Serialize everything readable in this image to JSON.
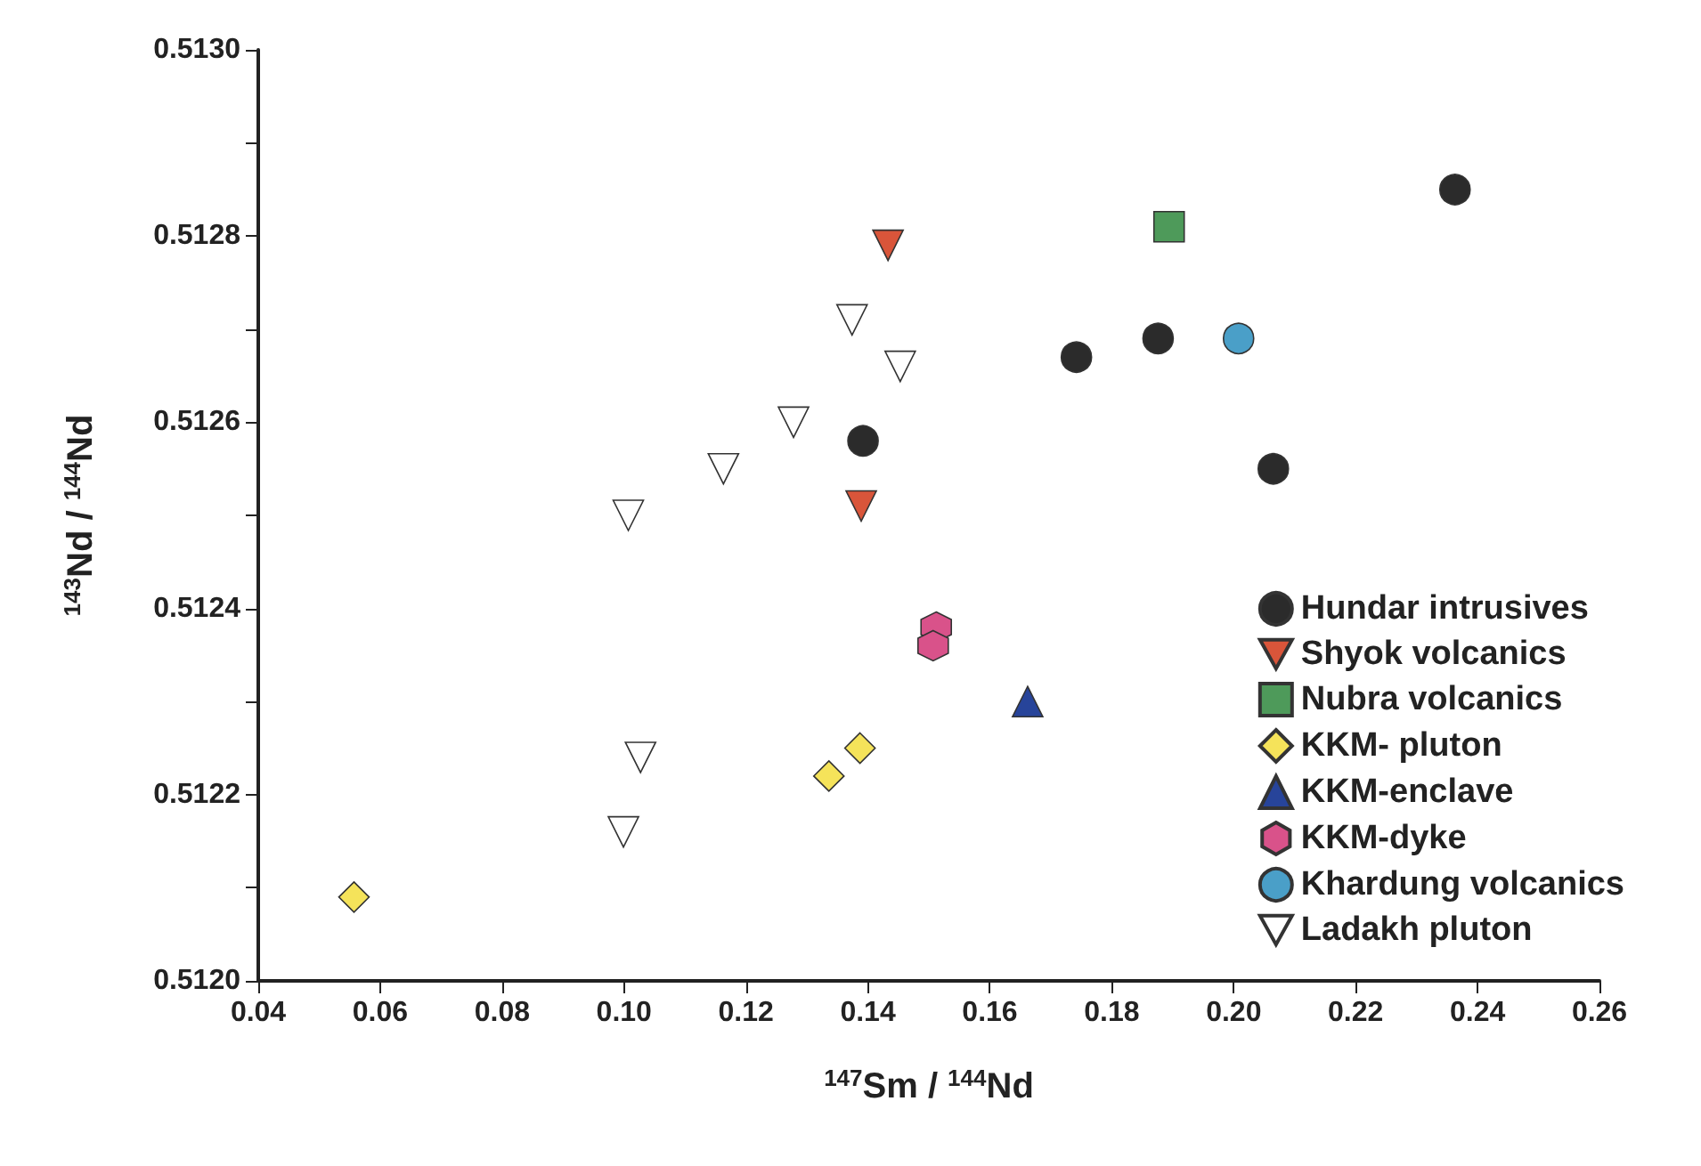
{
  "chart_data": {
    "type": "scatter",
    "xlabel": "$^{147}$Sm / $^{144}$Nd",
    "ylabel": "$^{143}$Nd / $^{144}$Nd",
    "xlim": [
      0.04,
      0.26
    ],
    "xticks": [
      {
        "value": 0.04,
        "label": "0.04"
      },
      {
        "value": 0.06,
        "label": "0.06"
      },
      {
        "value": 0.08,
        "label": "0.08"
      },
      {
        "value": 0.1,
        "label": "0.10"
      },
      {
        "value": 0.12,
        "label": "0.12"
      },
      {
        "value": 0.14,
        "label": "0.14"
      },
      {
        "value": 0.16,
        "label": "0.16"
      },
      {
        "value": 0.18,
        "label": "0.18"
      },
      {
        "value": 0.2,
        "label": "0.20"
      },
      {
        "value": 0.22,
        "label": "0.22"
      },
      {
        "value": 0.24,
        "label": "0.24"
      },
      {
        "value": 0.26,
        "label": "0.26"
      }
    ],
    "ylim": [
      0.512,
      0.513
    ],
    "yticks": [
      {
        "value": 0.512,
        "label": "0.5120"
      },
      {
        "value": 0.5121,
        "label": null
      },
      {
        "value": 0.5122,
        "label": "0.5122"
      },
      {
        "value": 0.5123,
        "label": null
      },
      {
        "value": 0.5124,
        "label": "0.5124"
      },
      {
        "value": 0.5125,
        "label": null
      },
      {
        "value": 0.5126,
        "label": "0.5126"
      },
      {
        "value": 0.5127,
        "label": null
      },
      {
        "value": 0.5128,
        "label": "0.5128"
      },
      {
        "value": 0.5129,
        "label": null
      },
      {
        "value": 0.513,
        "label": "0.5130"
      }
    ],
    "grid": false,
    "legend": "bottom right",
    "series": [
      {
        "name": "Hundar intrusives",
        "color": "#2b2b2b",
        "marker": "circle",
        "x": [
          0.2363,
          0.1742,
          0.1876,
          0.2065,
          0.1392
        ],
        "values": [
          0.51285,
          0.51267,
          0.51269,
          0.51255,
          0.51258
        ]
      },
      {
        "name": "Shyok volcanics",
        "color": "#d9553a",
        "marker": "triangle-down",
        "x": [
          0.1433,
          0.1389
        ],
        "values": [
          0.51279,
          0.51251
        ]
      },
      {
        "name": "Nubra volcanics",
        "color": "#4e9a5a",
        "marker": "square",
        "x": [
          0.1894
        ],
        "values": [
          0.51281
        ]
      },
      {
        "name": "KKM- pluton",
        "color": "#f5e35a",
        "marker": "diamond",
        "x": [
          0.0557,
          0.1336,
          0.1387
        ],
        "values": [
          0.51209,
          0.51222,
          0.51225
        ]
      },
      {
        "name": "KKM-enclave",
        "color": "#27449a",
        "marker": "triangle",
        "x": [
          0.1662
        ],
        "values": [
          0.5123
        ]
      },
      {
        "name": "KKM-dyke",
        "color": "#d9528a",
        "x": [
          0.1512,
          0.1507
        ],
        "values": [
          0.51238,
          0.51236
        ]
      },
      {
        "name": "Khardung volcanics",
        "color": "#4a9fc8",
        "marker": "circle",
        "x": [
          0.2008
        ],
        "values": [
          0.51269
        ]
      },
      {
        "name": "Ladakh pluton",
        "color": "#ffffff",
        "marker": "triangle-down",
        "x": [
          0.1374,
          0.1453,
          0.1278,
          0.1163,
          0.1007,
          0.1027,
          0.0999
        ],
        "values": [
          0.51271,
          0.51266,
          0.5126,
          0.51255,
          0.5125,
          0.51224,
          0.51216
        ]
      }
    ]
  }
}
